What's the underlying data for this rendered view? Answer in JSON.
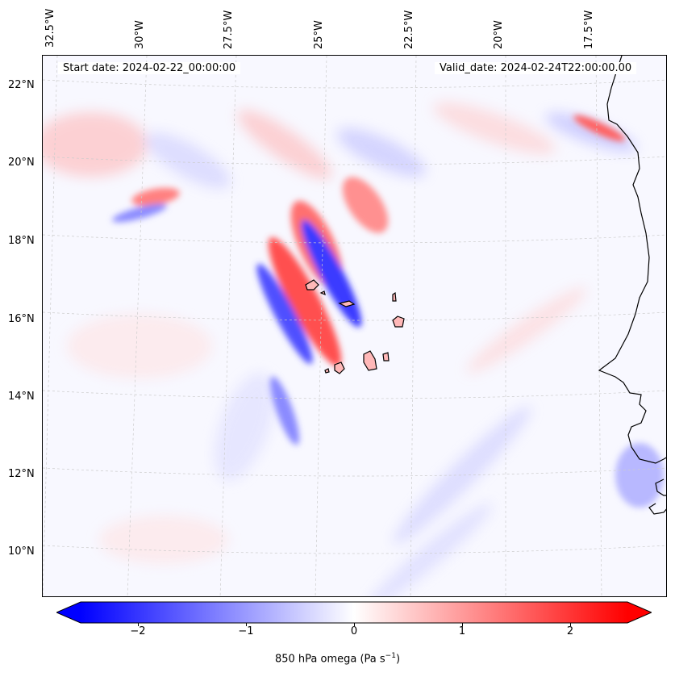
{
  "header": {
    "start_date": "Start date: 2024-02-22_00:00:00",
    "valid_date": "Valid_date: 2024-02-24T22:00:00.00"
  },
  "axes": {
    "longitude_labels": [
      "32.5°W",
      "30°W",
      "27.5°W",
      "25°W",
      "22.5°W",
      "20°W",
      "17.5°W"
    ],
    "latitude_labels": [
      "22°N",
      "20°N",
      "18°N",
      "16°N",
      "14°N",
      "12°N",
      "10°N"
    ]
  },
  "colorbar": {
    "label_text": "850 hPa omega (Pa s",
    "label_exponent": "−1",
    "label_close": ")",
    "ticks": [
      "−2",
      "−1",
      "0",
      "1",
      "2"
    ],
    "range": [
      -2.75,
      2.75
    ],
    "extend": "both",
    "colormap": "bwr",
    "color_min": "#0000ff",
    "color_mid": "#ffffff",
    "color_max": "#ff0000"
  },
  "map": {
    "coastline_color": "#000000",
    "gridline_color": "#cccccc",
    "gridlines": true
  }
}
